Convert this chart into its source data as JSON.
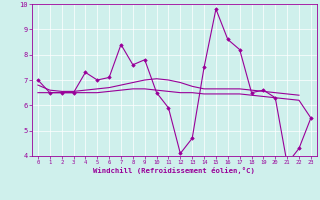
{
  "xlabel": "Windchill (Refroidissement éolien,°C)",
  "x": [
    0,
    1,
    2,
    3,
    4,
    5,
    6,
    7,
    8,
    9,
    10,
    11,
    12,
    13,
    14,
    15,
    16,
    17,
    18,
    19,
    20,
    21,
    22,
    23
  ],
  "line1": [
    7.0,
    6.5,
    6.5,
    6.5,
    7.3,
    7.0,
    7.1,
    8.4,
    7.6,
    7.8,
    6.5,
    5.9,
    4.1,
    4.7,
    7.5,
    9.8,
    8.6,
    8.2,
    6.5,
    6.6,
    6.3,
    3.7,
    4.3,
    5.5
  ],
  "line2": [
    6.5,
    6.5,
    6.5,
    6.5,
    6.5,
    6.5,
    6.55,
    6.6,
    6.65,
    6.65,
    6.6,
    6.55,
    6.5,
    6.5,
    6.45,
    6.45,
    6.45,
    6.45,
    6.4,
    6.35,
    6.3,
    6.25,
    6.2,
    5.5
  ],
  "line3": [
    6.8,
    6.6,
    6.55,
    6.55,
    6.6,
    6.65,
    6.7,
    6.8,
    6.9,
    7.0,
    7.05,
    7.0,
    6.9,
    6.75,
    6.65,
    6.65,
    6.65,
    6.65,
    6.6,
    6.55,
    6.5,
    6.45,
    6.4,
    null
  ],
  "line_color": "#990099",
  "bg_color": "#cff0ec",
  "grid_color": "#b0ddd8",
  "ylim_min": 4,
  "ylim_max": 10,
  "xlim_min": -0.5,
  "xlim_max": 23.5
}
